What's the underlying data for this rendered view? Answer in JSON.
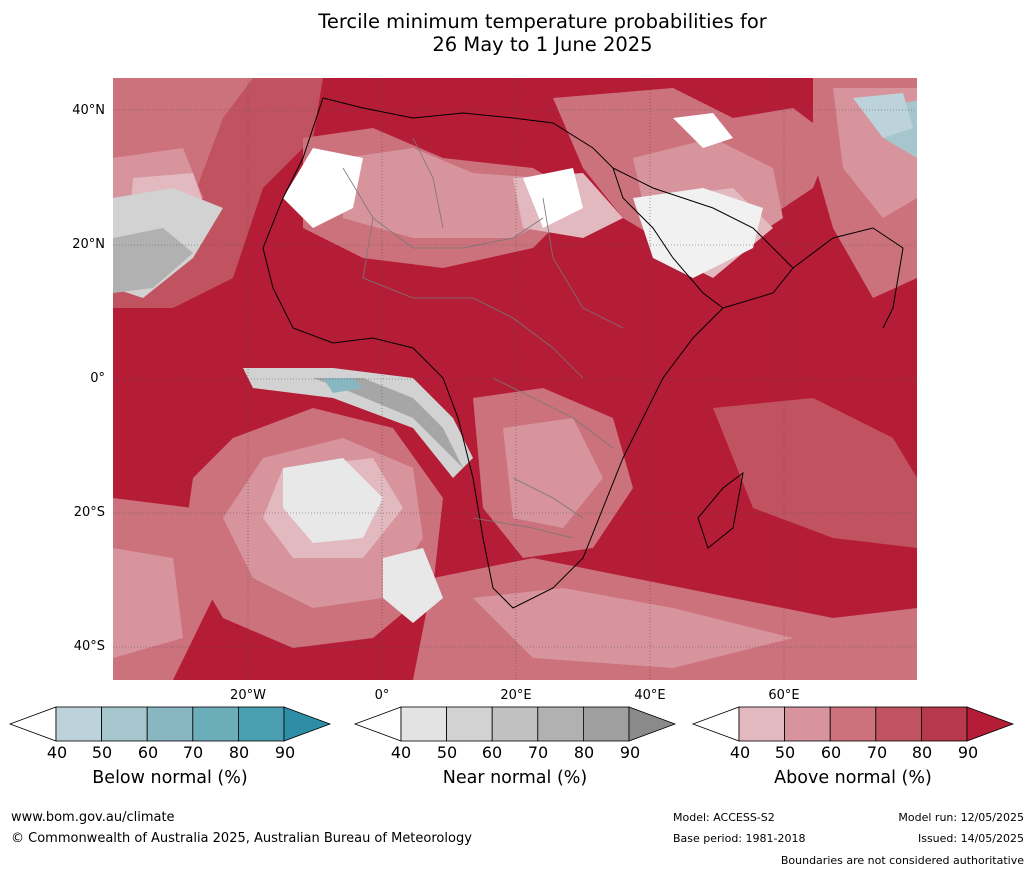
{
  "title": {
    "line1": "Tercile minimum temperature probabilities for",
    "line2": "26 May to 1 June 2025"
  },
  "map": {
    "lat_labels": [
      "40°N",
      "20°N",
      "0°",
      "20°S",
      "40°S"
    ],
    "lon_labels": [
      "20°W",
      "0°",
      "20°E",
      "40°E",
      "60°E"
    ]
  },
  "legend": {
    "below": {
      "label": "Below normal (%)",
      "ticks": [
        "40",
        "50",
        "60",
        "70",
        "80",
        "90"
      ],
      "colors": [
        "#ffffff",
        "#bdd3db",
        "#a6c6cd",
        "#89b7c1",
        "#6badb8",
        "#4a9fb0",
        "#2f8ea6"
      ]
    },
    "near": {
      "label": "Near normal (%)",
      "ticks": [
        "40",
        "50",
        "60",
        "70",
        "80",
        "90"
      ],
      "colors": [
        "#ffffff",
        "#e3e3e3",
        "#d2d2d2",
        "#c1c1c1",
        "#b1b1b1",
        "#9f9f9f",
        "#8a8a8a"
      ]
    },
    "above": {
      "label": "Above normal (%)",
      "ticks": [
        "40",
        "50",
        "60",
        "70",
        "80",
        "90"
      ],
      "colors": [
        "#ffffff",
        "#e2b9bf",
        "#d7949d",
        "#cc727d",
        "#c0535f",
        "#b5384b",
        "#b51c36"
      ]
    }
  },
  "footer": {
    "website": "www.bom.gov.au/climate",
    "copyright": "© Commonwealth of Australia 2025, Australian Bureau of Meteorology",
    "model": "Model: ACCESS-S2",
    "base_period": "Base period: 1981-2018",
    "model_run": "Model run: 12/05/2025",
    "issued": "Issued: 14/05/2025",
    "disclaimer": "Boundaries are not considered authoritative"
  }
}
